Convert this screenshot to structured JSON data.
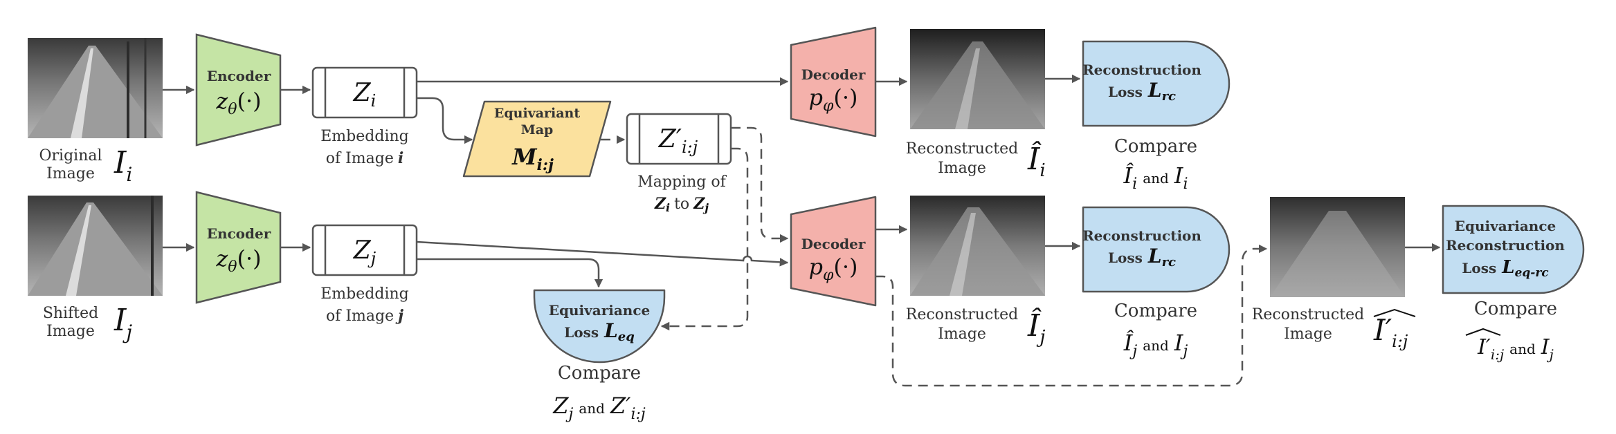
{
  "colors": {
    "encoder": "#c5e4a5",
    "decoder": "#f4b1ab",
    "equivariant_map": "#fbe19e",
    "loss": "#c2def2",
    "outline": "#555555"
  },
  "rows": {
    "original": {
      "image_label_line1": "Original",
      "image_label_line2": "Image",
      "image_symbol": "I",
      "image_sub": "i",
      "encoder_title": "Encoder",
      "encoder_func": "z",
      "encoder_sub": "θ",
      "encoder_arg": "(·)",
      "embedding_symbol": "Z",
      "embedding_sub": "i",
      "embedding_caption_line1": "Embedding",
      "embedding_caption_line2": "of Image",
      "embedding_caption_index": "i"
    },
    "shifted": {
      "image_label_line1": "Shifted",
      "image_label_line2": "Image",
      "image_symbol": "I",
      "image_sub": "j",
      "encoder_title": "Encoder",
      "encoder_func": "z",
      "encoder_sub": "θ",
      "encoder_arg": "(·)",
      "embedding_symbol": "Z",
      "embedding_sub": "j",
      "embedding_caption_line1": "Embedding",
      "embedding_caption_line2": "of Image",
      "embedding_caption_index": "j"
    }
  },
  "equivariant_map": {
    "title_line1": "Equivariant",
    "title_line2": "Map",
    "symbol": "M",
    "sub": "i:j"
  },
  "mapped_embedding": {
    "symbol": "Z′",
    "sub": "i:j",
    "caption_line1": "Mapping of",
    "caption_z1": "Z",
    "caption_z1_sub": "i",
    "caption_to": "to",
    "caption_z2": "Z",
    "caption_z2_sub": "j"
  },
  "equivariance_loss": {
    "title": "Equivariance",
    "loss_word": "Loss",
    "symbol": "L",
    "sub": "eq",
    "compare": "Compare",
    "cmp_a": "Z",
    "cmp_a_sub": "j",
    "and": "and",
    "cmp_b": "Z′",
    "cmp_b_sub": "i:j"
  },
  "decoders": {
    "title": "Decoder",
    "func": "p",
    "sub": "φ",
    "arg": "(·)"
  },
  "reconstructions": {
    "top": {
      "caption_line1": "Reconstructed",
      "caption_line2": "Image",
      "symbol": "Î",
      "sub": "i"
    },
    "middle": {
      "caption_line1": "Reconstructed",
      "caption_line2": "Image",
      "symbol": "Î",
      "sub": "j"
    },
    "right": {
      "caption_line1": "Reconstructed",
      "caption_line2": "Image",
      "symbol": "I′",
      "sub": "i:j"
    }
  },
  "losses": {
    "top": {
      "title": "Reconstruction",
      "loss_word": "Loss",
      "symbol": "L",
      "sub": "rc",
      "compare": "Compare",
      "cmp_a": "Î",
      "cmp_a_sub": "i",
      "and": "and",
      "cmp_b": "I",
      "cmp_b_sub": "i"
    },
    "middle": {
      "title": "Reconstruction",
      "loss_word": "Loss",
      "symbol": "L",
      "sub": "rc",
      "compare": "Compare",
      "cmp_a": "Î",
      "cmp_a_sub": "j",
      "and": "and",
      "cmp_b": "I",
      "cmp_b_sub": "j"
    },
    "right": {
      "title_line1": "Equivariance",
      "title_line2": "Reconstruction",
      "loss_word": "Loss",
      "symbol": "L",
      "sub": "eq-rc",
      "compare": "Compare",
      "cmp_a": "I′",
      "cmp_a_sub": "i:j",
      "and": "and",
      "cmp_b": "I",
      "cmp_b_sub": "j"
    }
  }
}
